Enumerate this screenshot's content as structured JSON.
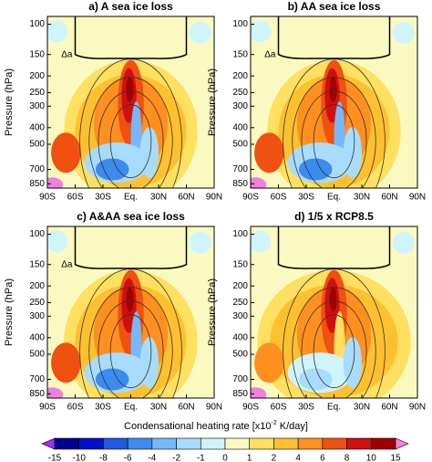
{
  "chart_data": [
    {
      "type": "contour",
      "title": "a) A sea ice loss",
      "ylabel": "Pressure (hPa)",
      "annotation": "Δa"
    },
    {
      "type": "contour",
      "title": "b) AA sea ice loss",
      "ylabel": "Pressure (hPa)",
      "annotation": "Δa"
    },
    {
      "type": "contour",
      "title": "c) A&AA sea ice loss",
      "ylabel": "Pressure (hPa)",
      "annotation": "Δa"
    },
    {
      "type": "contour",
      "title": "d) 1/5 x RCP8.5",
      "ylabel": "Pressure (hPa)"
    }
  ],
  "axes": {
    "xlim": [
      -90,
      90
    ],
    "xticks": [
      {
        "value": -90,
        "label": "90S"
      },
      {
        "value": -60,
        "label": "60S"
      },
      {
        "value": -30,
        "label": "30S"
      },
      {
        "value": 0,
        "label": "Eq."
      },
      {
        "value": 30,
        "label": "30N"
      },
      {
        "value": 60,
        "label": "60N"
      },
      {
        "value": 90,
        "label": "90N"
      }
    ],
    "ylim": [
      900,
      90
    ],
    "log_y": true,
    "yticks": [
      100,
      150,
      200,
      250,
      300,
      400,
      500,
      700,
      850
    ]
  },
  "colorbar": {
    "label": [
      "Condensational heating rate [x10",
      "-2",
      " K/day]"
    ],
    "levels": [
      -15,
      -10,
      -8,
      -6,
      -4,
      -2,
      -1,
      0,
      1,
      2,
      4,
      6,
      8,
      10,
      15
    ],
    "colors": [
      "#9a30f0",
      "#000090",
      "#0010c8",
      "#2058e0",
      "#3c8cf0",
      "#78b8f8",
      "#a8dcfc",
      "#d0f4fc",
      "#fafac0",
      "#ffe060",
      "#ffc030",
      "#ff9020",
      "#f05010",
      "#d01010",
      "#a00000",
      "#f080e0"
    ]
  }
}
